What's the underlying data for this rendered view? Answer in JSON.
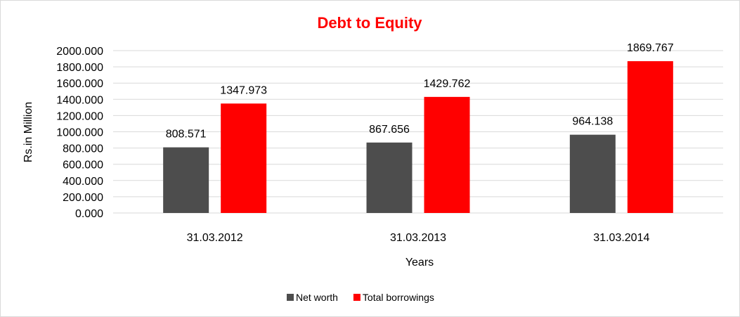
{
  "chart_data": {
    "type": "bar",
    "title": "Debt to Equity",
    "xlabel": "Years",
    "ylabel": "Rs.in Million",
    "categories": [
      "31.03.2012",
      "31.03.2013",
      "31.03.2014"
    ],
    "series": [
      {
        "name": "Net worth",
        "color": "#4d4d4d",
        "values": [
          808.571,
          867.656,
          964.138
        ],
        "value_labels": [
          "808.571",
          "867.656",
          "964.138"
        ]
      },
      {
        "name": "Total borrowings",
        "color": "#ff0000",
        "values": [
          1347.973,
          1429.762,
          1869.767
        ],
        "value_labels": [
          "1347.973",
          "1429.762",
          "1869.767"
        ]
      }
    ],
    "ylim": [
      0,
      2000
    ],
    "yticks": [
      "0.000",
      "200.000",
      "400.000",
      "600.000",
      "800.000",
      "1000.000",
      "1200.000",
      "1400.000",
      "1600.000",
      "1800.000",
      "2000.000"
    ],
    "grid": true,
    "legend_position": "bottom",
    "title_color": "#ff0000"
  }
}
